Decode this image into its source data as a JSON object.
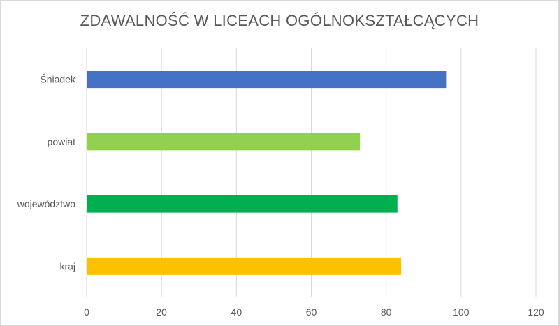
{
  "chart_data": {
    "type": "bar",
    "orientation": "horizontal",
    "title": "ZDAWALNOŚĆ W LICEACH OGÓLNOKSZTAŁCĄCYCH",
    "categories": [
      "kraj",
      "województwo",
      "powiat",
      "Śniadek"
    ],
    "values": [
      84,
      83,
      73,
      96
    ],
    "colors": [
      "#FFC000",
      "#00B050",
      "#92D050",
      "#4472C4"
    ],
    "xlim": [
      0,
      120
    ],
    "xticks": [
      0,
      20,
      40,
      60,
      80,
      100,
      120
    ],
    "grid": "vertical",
    "gridColor": "#d9d9d9",
    "legend": "none"
  }
}
